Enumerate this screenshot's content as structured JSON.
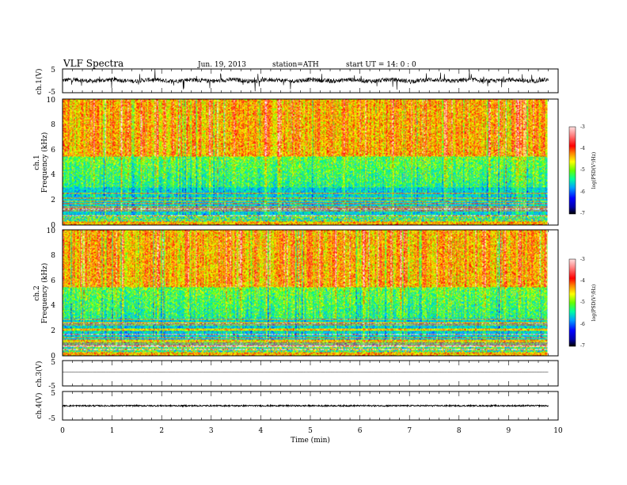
{
  "header": {
    "title": "VLF  Spectra",
    "date": "Jun. 19, 2013",
    "station": "station=ATH",
    "start": "start  UT  =   14: 0  : 0"
  },
  "colors": {
    "cmap": [
      "#000000",
      "#0000aa",
      "#0000ff",
      "#0080ff",
      "#00d0ff",
      "#00ff80",
      "#66ff00",
      "#ffff00",
      "#ffa000",
      "#ff0000",
      "#ff9090",
      "#ffffff"
    ]
  },
  "chart_data": [
    {
      "type": "line",
      "name": "ch1-waveform",
      "ylabel": "ch.1(V)",
      "ylim": [
        -5,
        5
      ],
      "y_ticks": [
        "5",
        "-5"
      ],
      "x_range_min": [
        0,
        9.8
      ],
      "baseline_v": 0.2,
      "spread_v": 0.9
    },
    {
      "type": "heatmap",
      "name": "ch1-spectrogram",
      "ylabel_line1": "ch.1",
      "ylabel_line2": "Frequency  (kHz)",
      "ylim_khz": [
        0,
        10
      ],
      "y_ticks": [
        "0",
        "2",
        "4",
        "6",
        "8",
        "10"
      ],
      "x_range_min": [
        0,
        9.8
      ],
      "colorbar": {
        "label": "log(PSD(V²/Hz)",
        "range": [
          -7,
          -3
        ],
        "ticks": [
          "-7",
          "-6",
          "-5",
          "-4",
          "-3"
        ]
      }
    },
    {
      "type": "heatmap",
      "name": "ch2-spectrogram",
      "ylabel_line1": "ch.2",
      "ylabel_line2": "Frequency  (kHz)",
      "ylim_khz": [
        0,
        10
      ],
      "y_ticks": [
        "0",
        "2",
        "4",
        "6",
        "8",
        "10"
      ],
      "x_range_min": [
        0,
        9.8
      ],
      "colorbar": {
        "label": "log(PSD(V²/Hz)",
        "range": [
          -7,
          -3
        ],
        "ticks": [
          "-7",
          "-6",
          "-5",
          "-4",
          "-3"
        ]
      }
    },
    {
      "type": "line",
      "name": "ch3-waveform",
      "ylabel": "ch.3(V)",
      "ylim": [
        -5,
        5
      ],
      "y_ticks": [
        "5",
        "-5"
      ],
      "x_range_min": [
        0,
        9.8
      ],
      "baseline_v": 0.5,
      "spread_v": 0.05
    },
    {
      "type": "line",
      "name": "ch4-waveform",
      "ylabel": "ch.4(V)",
      "ylim": [
        -5,
        5
      ],
      "y_ticks": [
        "5",
        "-5"
      ],
      "x_range_min": [
        0,
        9.8
      ],
      "baseline_v": 0.0,
      "spread_v": 0.25
    }
  ],
  "xaxis": {
    "label": "Time  (min)",
    "xlim": [
      0,
      10
    ],
    "ticks": [
      "0",
      "1",
      "2",
      "3",
      "4",
      "5",
      "6",
      "7",
      "8",
      "9",
      "10"
    ]
  }
}
